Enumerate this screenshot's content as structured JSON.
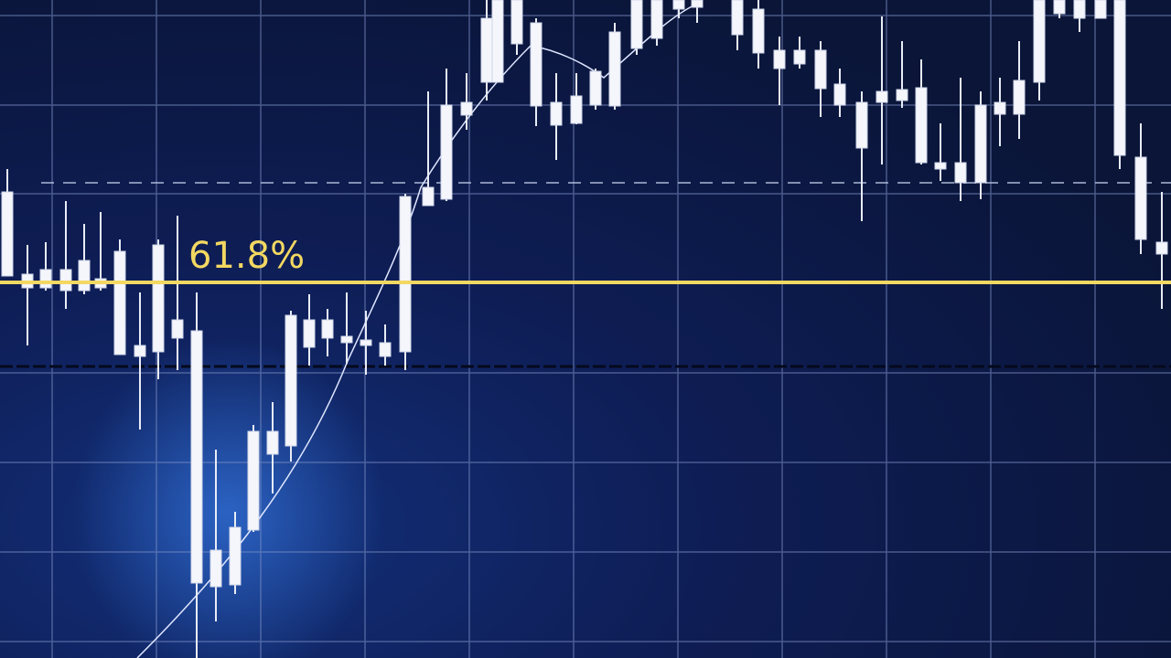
{
  "annotation": {
    "label": "61.8%"
  }
}
